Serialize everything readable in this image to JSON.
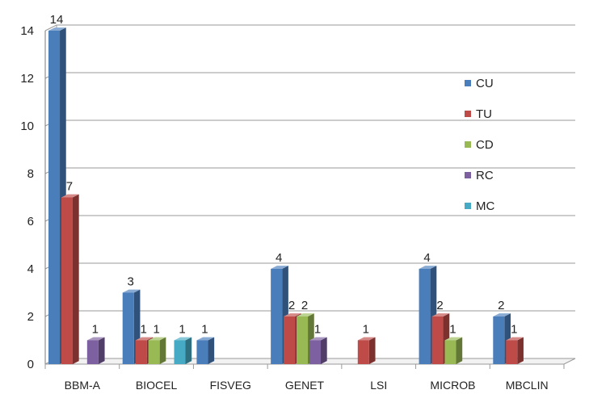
{
  "chart_data": {
    "type": "bar",
    "title": "",
    "xlabel": "",
    "ylabel": "",
    "ylim": [
      0,
      14
    ],
    "yticks": [
      0,
      2,
      4,
      6,
      8,
      10,
      12,
      14
    ],
    "grid": true,
    "style": "3d-clustered",
    "legend_position": "right-inside",
    "categories": [
      "BBM-A",
      "BIOCEL",
      "FISVEG",
      "GENET",
      "LSI",
      "MICROB",
      "MBCLIN"
    ],
    "series": [
      {
        "name": "CU",
        "color": "#4a7ebb",
        "values": [
          14,
          3,
          1,
          4,
          null,
          4,
          2
        ]
      },
      {
        "name": "TU",
        "color": "#be4b48",
        "values": [
          7,
          1,
          null,
          2,
          1,
          2,
          1
        ]
      },
      {
        "name": "CD",
        "color": "#98b954",
        "values": [
          null,
          1,
          null,
          2,
          null,
          1,
          null
        ]
      },
      {
        "name": "RC",
        "color": "#7d60a0",
        "values": [
          1,
          null,
          null,
          1,
          null,
          null,
          null
        ]
      },
      {
        "name": "MC",
        "color": "#46aac5",
        "values": [
          null,
          1,
          null,
          null,
          null,
          null,
          null
        ]
      }
    ]
  }
}
